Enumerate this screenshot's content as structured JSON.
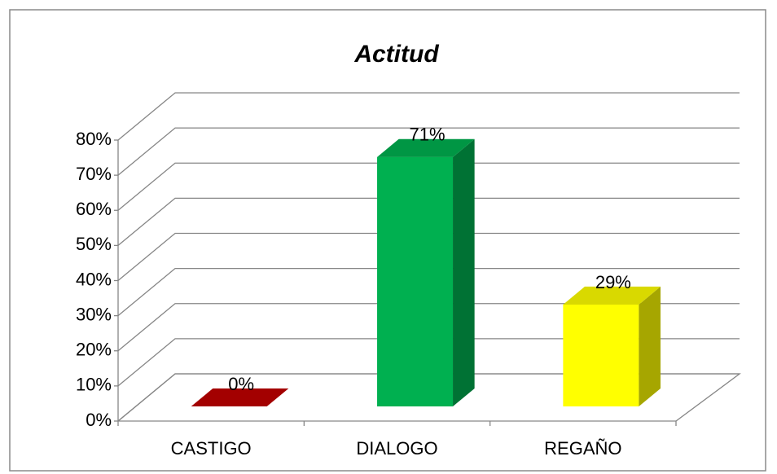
{
  "chart_data": {
    "type": "bar3d",
    "title": "Actitud",
    "categories": [
      "CASTIGO",
      "DIALOGO",
      "REGAÑO"
    ],
    "values": [
      0,
      71,
      29
    ],
    "value_labels": [
      "0%",
      "71%",
      "29%"
    ],
    "colors": [
      "#c00000",
      "#00b050",
      "#ffff00"
    ],
    "ylim": [
      0,
      80
    ],
    "yticks": [
      {
        "value": 0,
        "label": "0%"
      },
      {
        "value": 10,
        "label": "10%"
      },
      {
        "value": 20,
        "label": "20%"
      },
      {
        "value": 30,
        "label": "30%"
      },
      {
        "value": 40,
        "label": "40%"
      },
      {
        "value": 50,
        "label": "50%"
      },
      {
        "value": 60,
        "label": "60%"
      },
      {
        "value": 70,
        "label": "70%"
      },
      {
        "value": 80,
        "label": "80%"
      }
    ],
    "grid": true
  }
}
